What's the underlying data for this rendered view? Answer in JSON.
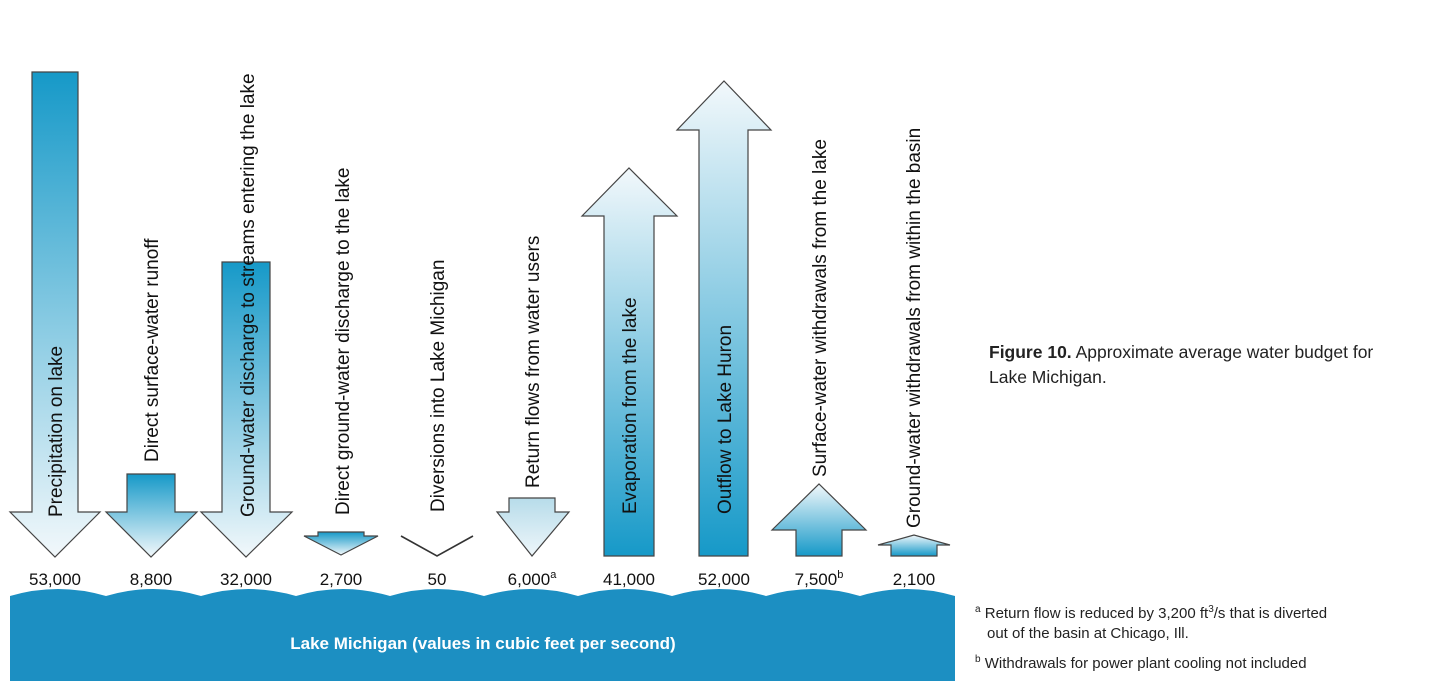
{
  "figure": {
    "caption_label": "Figure 10.",
    "caption_text": "Approximate average water budget for Lake Michigan."
  },
  "lake": {
    "label": "Lake Michigan (values in cubic feet per second)",
    "color": "#1c8fc2"
  },
  "flows": [
    {
      "id": "precipitation",
      "label": "Precipitation on lake",
      "value": "53,000",
      "superscript": "",
      "direction": "in"
    },
    {
      "id": "surface-runoff",
      "label": "Direct surface-water runoff",
      "value": "8,800",
      "superscript": "",
      "direction": "in"
    },
    {
      "id": "gw-to-streams",
      "label": "Ground-water discharge to streams entering the lake",
      "value": "32,000",
      "superscript": "",
      "direction": "in"
    },
    {
      "id": "direct-gw",
      "label": "Direct ground-water discharge to the lake",
      "value": "2,700",
      "superscript": "",
      "direction": "in"
    },
    {
      "id": "diversions",
      "label": "Diversions into Lake Michigan",
      "value": "50",
      "superscript": "",
      "direction": "in"
    },
    {
      "id": "return-flows",
      "label": "Return flows from water users",
      "value": "6,000",
      "superscript": "a",
      "direction": "in"
    },
    {
      "id": "evaporation",
      "label": "Evaporation from the lake",
      "value": "41,000",
      "superscript": "",
      "direction": "out"
    },
    {
      "id": "outflow-huron",
      "label": "Outflow to Lake Huron",
      "value": "52,000",
      "superscript": "",
      "direction": "out"
    },
    {
      "id": "sw-withdrawals",
      "label": "Surface-water withdrawals from the lake",
      "value": "7,500",
      "superscript": "b",
      "direction": "out"
    },
    {
      "id": "gw-withdrawals",
      "label": "Ground-water withdrawals from within the basin",
      "value": "2,100",
      "superscript": "",
      "direction": "out"
    }
  ],
  "footnotes": {
    "a_mark": "a",
    "a_text_1": "Return flow is reduced by 3,200 ft",
    "a_sup": "3",
    "a_text_2": "/s that is diverted",
    "a_text_3": "out of the basin at Chicago, Ill.",
    "b_mark": "b",
    "b_text": "Withdrawals for power plant cooling not included"
  },
  "colors": {
    "arrow_dark": "#1699c8",
    "arrow_light": "#eef6fa",
    "arrow_outline": "#444444"
  }
}
